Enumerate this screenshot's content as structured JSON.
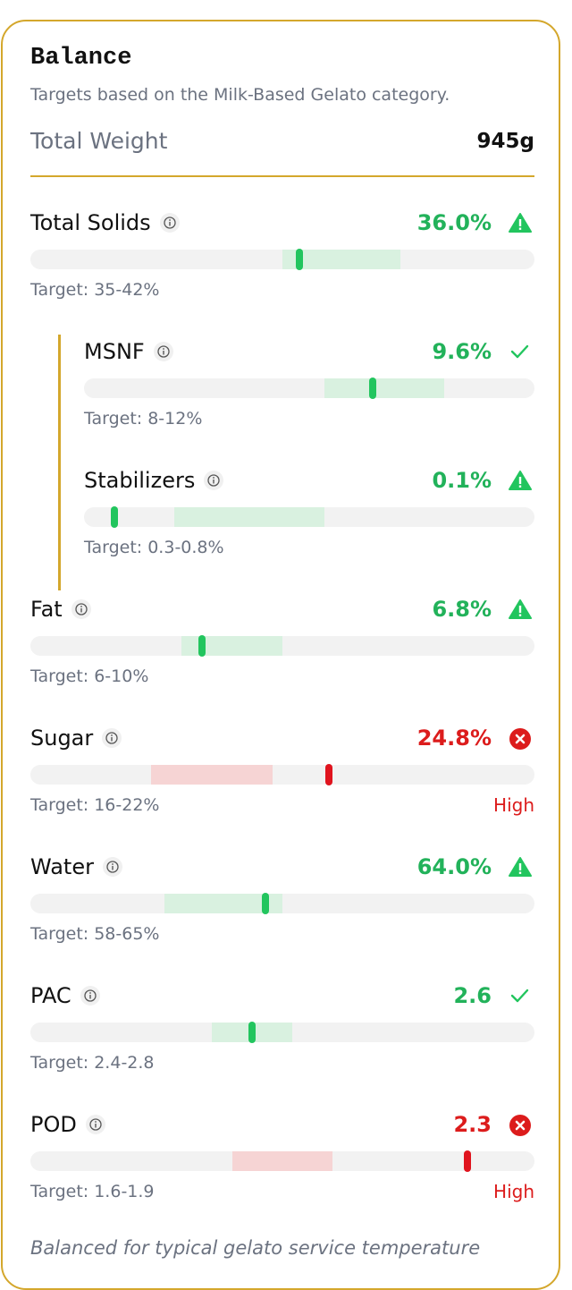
{
  "header": {
    "title": "Balance",
    "subtitle": "Targets based on the Milk-Based Gelato category.",
    "total_label": "Total Weight",
    "total_value": "945g"
  },
  "metrics": [
    {
      "name": "Total Solids",
      "value": {
        "value": 36.0,
        "label": "36.0%"
      },
      "status": "warning",
      "target": {
        "min": 35,
        "max": 42,
        "label": "Target: 35-42%"
      },
      "xlim": [
        20,
        50
      ],
      "children": [
        {
          "name": "MSNF",
          "value": {
            "value": 9.6,
            "label": "9.6%"
          },
          "status": "ok",
          "target": {
            "min": 8,
            "max": 12,
            "label": "Target: 8-12%"
          },
          "xlim": [
            0,
            15
          ]
        },
        {
          "name": "Stabilizers",
          "value": {
            "value": 0.1,
            "label": "0.1%"
          },
          "status": "warning",
          "target": {
            "min": 0.3,
            "max": 0.8,
            "label": "Target: 0.3-0.8%"
          },
          "xlim": [
            0,
            1.5
          ]
        }
      ]
    },
    {
      "name": "Fat",
      "value": {
        "value": 6.8,
        "label": "6.8%"
      },
      "status": "warning",
      "target": {
        "min": 6,
        "max": 10,
        "label": "Target: 6-10%"
      },
      "xlim": [
        0,
        20
      ]
    },
    {
      "name": "Sugar",
      "value": {
        "value": 24.8,
        "label": "24.8%"
      },
      "status": "error",
      "flag": "High",
      "target": {
        "min": 16,
        "max": 22,
        "label": "Target: 16-22%"
      },
      "xlim": [
        10,
        35
      ]
    },
    {
      "name": "Water",
      "value": {
        "value": 64.0,
        "label": "64.0%"
      },
      "status": "warning",
      "target": {
        "min": 58,
        "max": 65,
        "label": "Target: 58-65%"
      },
      "xlim": [
        50,
        80
      ]
    },
    {
      "name": "PAC",
      "value": {
        "value": 2.6,
        "label": "2.6"
      },
      "status": "ok",
      "target": {
        "min": 2.4,
        "max": 2.8,
        "label": "Target: 2.4-2.8"
      },
      "xlim": [
        1.5,
        4.0
      ]
    },
    {
      "name": "POD",
      "value": {
        "value": 2.3,
        "label": "2.3"
      },
      "status": "error",
      "flag": "High",
      "target": {
        "min": 1.6,
        "max": 1.9,
        "label": "Target: 1.6-1.9"
      },
      "xlim": [
        1.0,
        2.5
      ]
    }
  ],
  "footer": "Balanced for typical gelato service temperature"
}
